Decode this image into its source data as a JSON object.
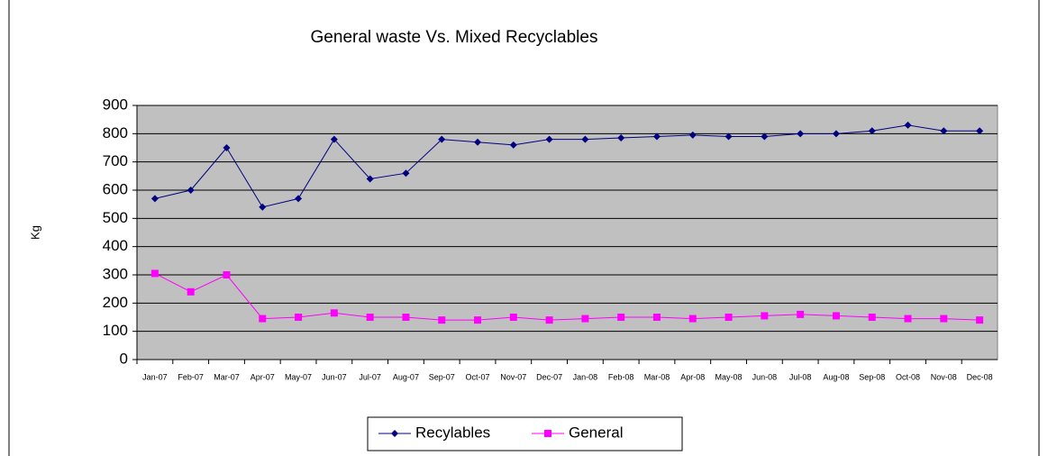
{
  "chart_data": {
    "type": "line",
    "title": "General waste Vs. Mixed Recyclables",
    "y_label": "Kg",
    "categories": [
      "Jan-07",
      "Feb-07",
      "Mar-07",
      "Apr-07",
      "May-07",
      "Jun-07",
      "Jul-07",
      "Aug-07",
      "Sep-07",
      "Oct-07",
      "Nov-07",
      "Dec-07",
      "Jan-08",
      "Feb-08",
      "Mar-08",
      "Apr-08",
      "May-08",
      "Jun-08",
      "Jul-08",
      "Aug-08",
      "Sep-08",
      "Oct-08",
      "Nov-08",
      "Dec-08"
    ],
    "series": [
      {
        "name": "Recylables",
        "color": "#000080",
        "marker": "diamond",
        "values": [
          570,
          600,
          750,
          540,
          570,
          780,
          640,
          660,
          780,
          770,
          760,
          780,
          780,
          785,
          790,
          795,
          790,
          790,
          800,
          800,
          810,
          830,
          810,
          810
        ]
      },
      {
        "name": "General",
        "color": "#ff00ff",
        "marker": "square",
        "values": [
          305,
          240,
          300,
          145,
          150,
          165,
          150,
          150,
          140,
          140,
          150,
          140,
          145,
          150,
          150,
          145,
          150,
          155,
          160,
          155,
          150,
          145,
          145,
          140
        ]
      }
    ],
    "ylim": [
      0,
      900
    ],
    "yticks": [
      0,
      100,
      200,
      300,
      400,
      500,
      600,
      700,
      800,
      900
    ],
    "grid": true,
    "legend": "bottom"
  }
}
